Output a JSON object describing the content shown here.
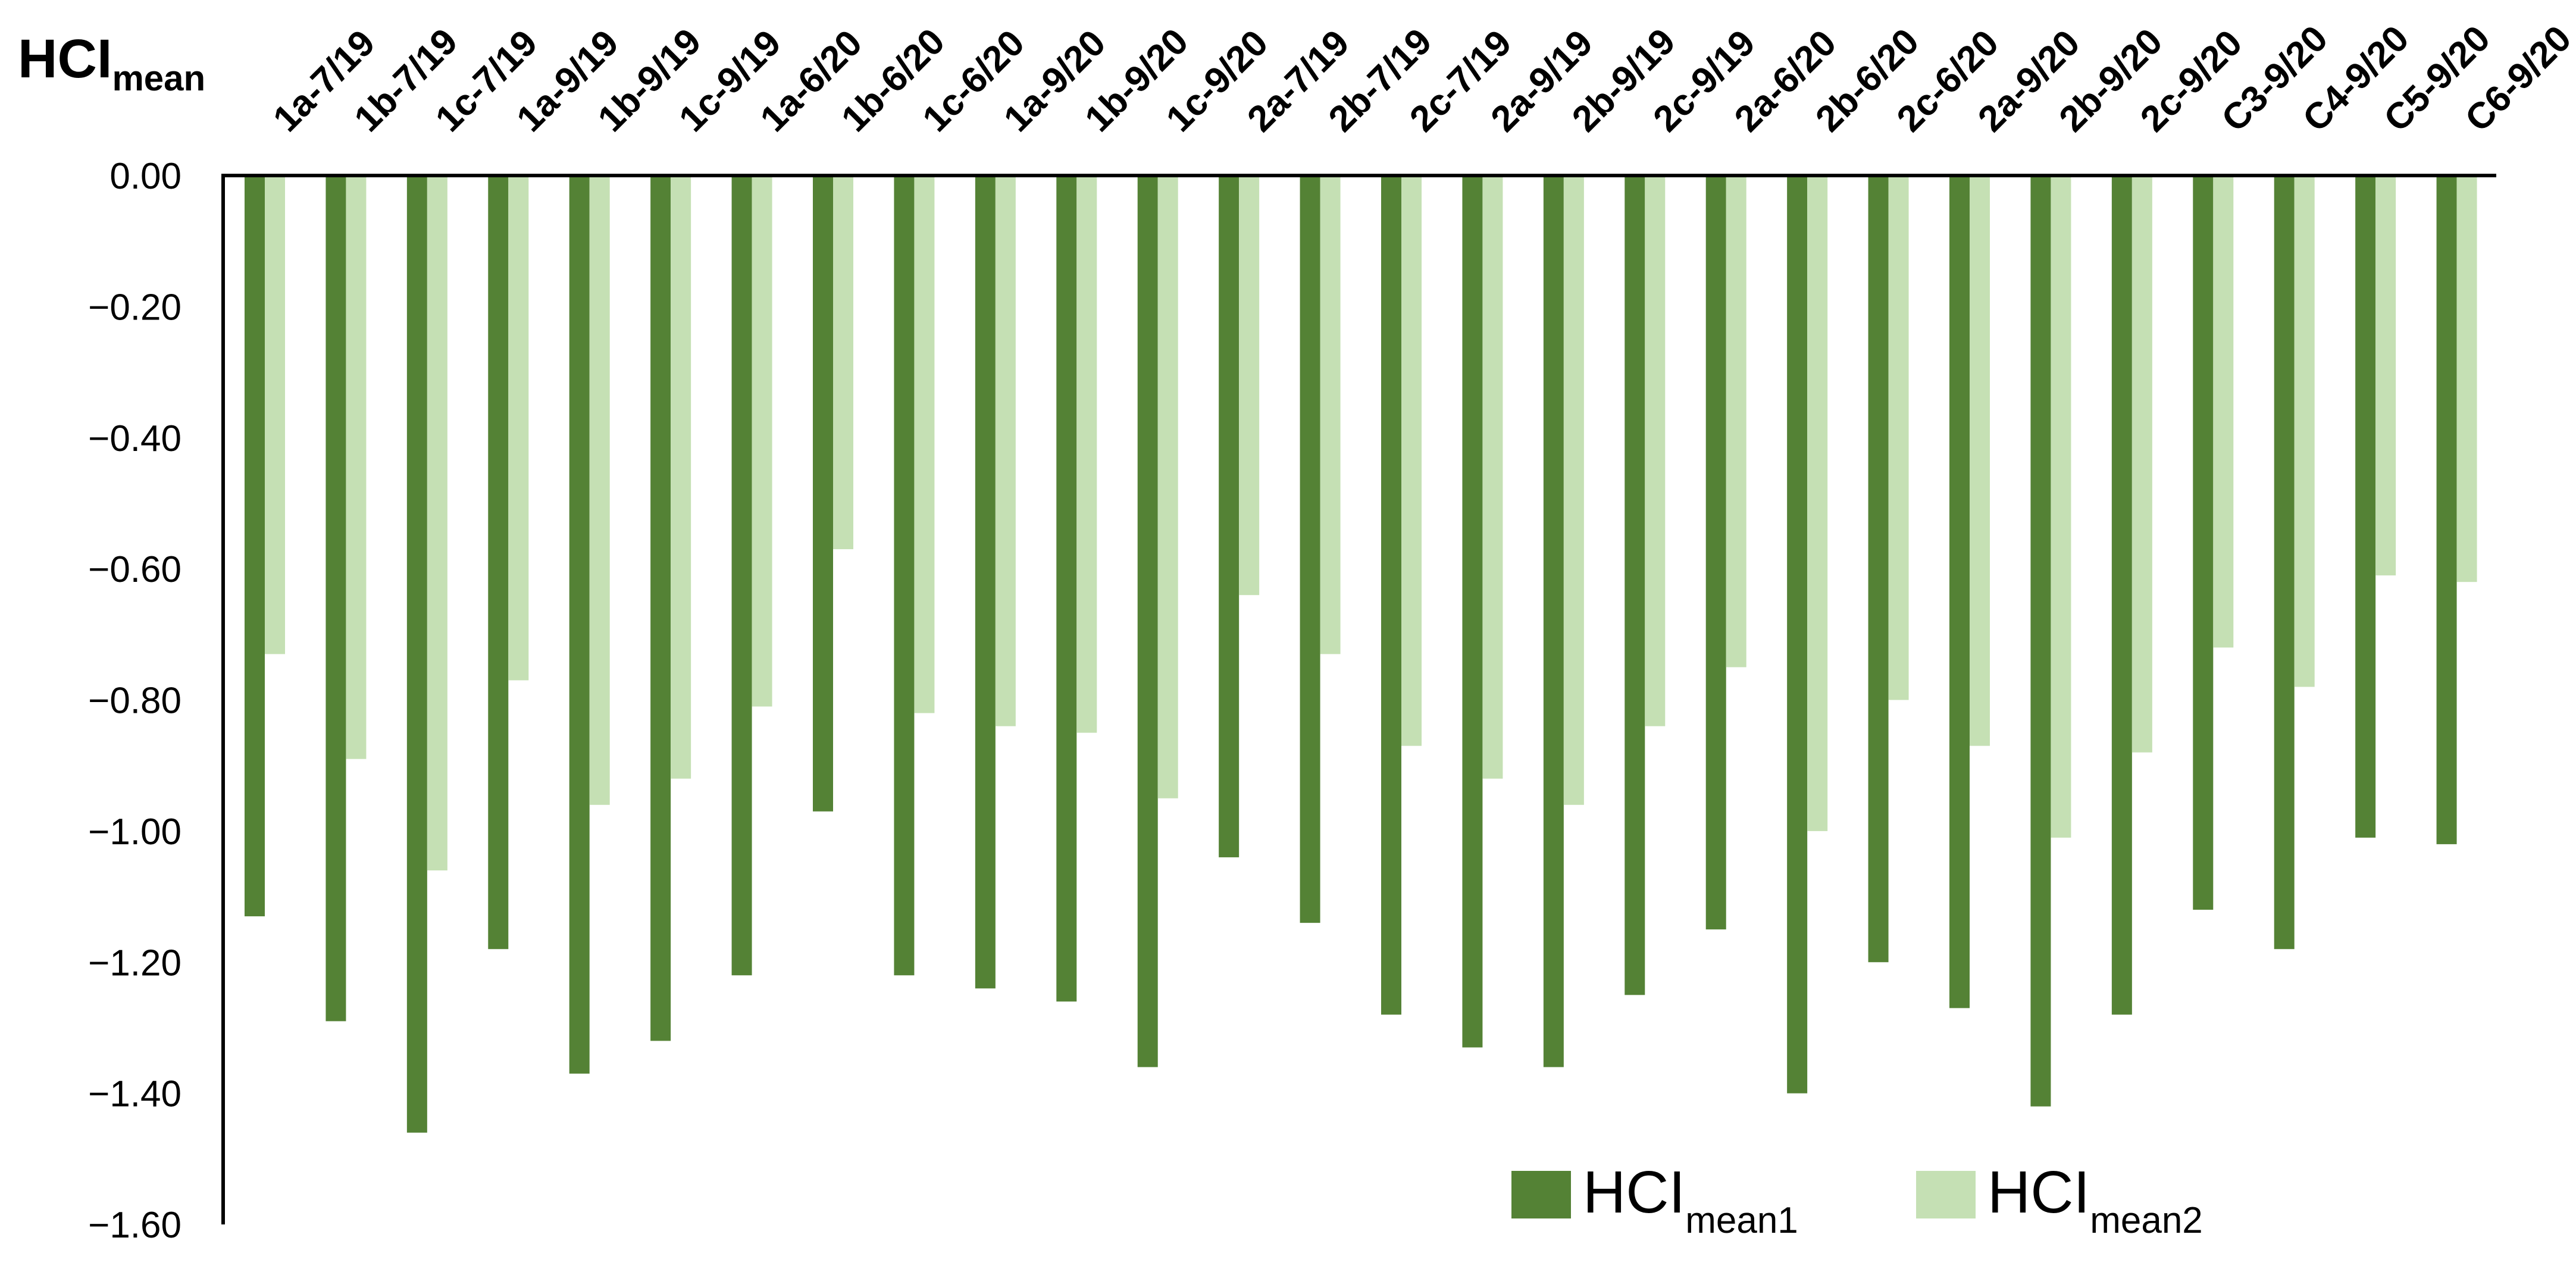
{
  "chart_data": {
    "type": "bar",
    "title": {
      "main": "HCI",
      "sub": "mean"
    },
    "categories": [
      "1a-7/19",
      "1b-7/19",
      "1c-7/19",
      "1a-9/19",
      "1b-9/19",
      "1c-9/19",
      "1a-6/20",
      "1b-6/20",
      "1c-6/20",
      "1a-9/20",
      "1b-9/20",
      "1c-9/20",
      "2a-7/19",
      "2b-7/19",
      "2c-7/19",
      "2a-9/19",
      "2b-9/19",
      "2c-9/19",
      "2a-6/20",
      "2b-6/20",
      "2c-6/20",
      "2a-9/20",
      "2b-9/20",
      "2c-9/20",
      "C3-9/20",
      "C4-9/20",
      "C5-9/20",
      "C6-9/20"
    ],
    "series": [
      {
        "name": "HCI",
        "name_sub": "mean1",
        "color": "#548235",
        "values": [
          -1.13,
          -1.29,
          -1.46,
          -1.18,
          -1.37,
          -1.32,
          -1.22,
          -0.97,
          -1.22,
          -1.24,
          -1.26,
          -1.36,
          -1.04,
          -1.14,
          -1.28,
          -1.33,
          -1.36,
          -1.25,
          -1.15,
          -1.4,
          -1.2,
          -1.27,
          -1.42,
          -1.28,
          -1.12,
          -1.18,
          -1.01,
          -1.02
        ]
      },
      {
        "name": "HCI",
        "name_sub": "mean2",
        "color": "#c5e0b4",
        "values": [
          -0.73,
          -0.89,
          -1.06,
          -0.77,
          -0.96,
          -0.92,
          -0.81,
          -0.57,
          -0.82,
          -0.84,
          -0.85,
          -0.95,
          -0.64,
          -0.73,
          -0.87,
          -0.92,
          -0.96,
          -0.84,
          -0.75,
          -1.0,
          -0.8,
          -0.87,
          -1.01,
          -0.88,
          -0.72,
          -0.78,
          -0.61,
          -0.62
        ]
      }
    ],
    "ylim": [
      -1.6,
      0
    ],
    "yticks": [
      "0.00",
      "−0.20",
      "−0.40",
      "−0.60",
      "−0.80",
      "−1.00",
      "−1.20",
      "−1.40",
      "−1.60"
    ],
    "ytick_values": [
      0,
      -0.2,
      -0.4,
      -0.6,
      -0.8,
      -1.0,
      -1.2,
      -1.4,
      -1.6
    ],
    "xaxis_position": "top",
    "legend_position": "bottom-right",
    "grid": false
  }
}
